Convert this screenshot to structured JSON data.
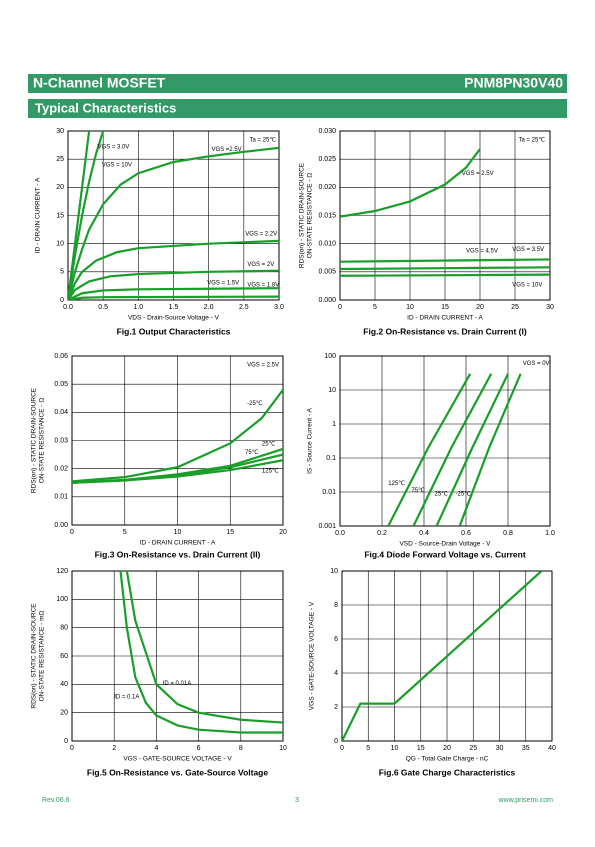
{
  "header": {
    "title": "N-Channel MOSFET",
    "part_number": "PNM8PN30V40"
  },
  "section": {
    "title": "Typical Characteristics"
  },
  "footer": {
    "revision": "Rev.06.6",
    "page": "3",
    "url": "www.prisemi.com"
  },
  "chart_data": [
    {
      "type": "line",
      "title": "Fig.1 Output Characteristics",
      "color": "#1a9e2a",
      "xlabel": "VDS - Drain-Source Voltage - V",
      "ylabel": [
        "ID - DRAIN CURRENT - A"
      ],
      "annotations": [
        "Ta = 25℃"
      ],
      "xlim": [
        0,
        3
      ],
      "ylim": [
        0,
        30
      ],
      "xticks": [
        {
          "value": 0,
          "label": "0.0"
        },
        0.5,
        {
          "value": 1,
          "label": "1.0"
        },
        1.5,
        {
          "value": 2,
          "label": "2.0"
        },
        2.5,
        {
          "value": 3,
          "label": "3.0"
        }
      ],
      "yticks": [
        0,
        5,
        10,
        15,
        20,
        25,
        30
      ],
      "grid": true,
      "series": [
        {
          "name": "VGS = 10V",
          "x": [
            0,
            0.1,
            0.2,
            0.3
          ],
          "values": [
            0,
            10,
            20,
            30
          ]
        },
        {
          "name": "VGS = 3.0V",
          "x": [
            0,
            0.1,
            0.2,
            0.3,
            0.4,
            0.5
          ],
          "values": [
            0,
            8,
            15,
            21,
            26,
            30
          ]
        },
        {
          "name": "VGS =2.5V",
          "x": [
            0,
            0.1,
            0.2,
            0.3,
            0.5,
            0.75,
            1,
            1.5,
            2,
            2.5,
            3
          ],
          "values": [
            0,
            5,
            9,
            12.5,
            17,
            20.5,
            22.5,
            24.5,
            25.5,
            26.3,
            27
          ]
        },
        {
          "name": "VGS = 2.2V",
          "x": [
            0,
            0.1,
            0.2,
            0.4,
            0.7,
            1,
            2,
            3
          ],
          "values": [
            0,
            3,
            5,
            7,
            8.5,
            9.2,
            10,
            10.5
          ]
        },
        {
          "name": "VGS = 2V",
          "x": [
            0,
            0.1,
            0.3,
            0.6,
            1,
            2,
            3
          ],
          "values": [
            0,
            1.8,
            3.3,
            4.2,
            4.6,
            5,
            5.2
          ]
        },
        {
          "name": "VGS = 1.8V",
          "x": [
            0,
            0.2,
            0.5,
            1,
            2,
            3
          ],
          "values": [
            0,
            1.2,
            1.7,
            1.9,
            2,
            2.1
          ]
        },
        {
          "name": "VGS = 1.5V",
          "x": [
            0,
            0.2,
            0.5,
            3
          ],
          "values": [
            0,
            0.4,
            0.5,
            0.6
          ]
        }
      ]
    },
    {
      "type": "line",
      "title": "Fig.2 On-Resistance vs. Drain Current (I)",
      "color": "#1a9e2a",
      "xlabel": "ID - DRAIN CURRENT - A",
      "ylabel": [
        "RDS(on) - STATIC DRAIN-SOURCE",
        "ON-STATE RESISTANCE - Ω"
      ],
      "annotations": [
        "Ta = 25℃"
      ],
      "xlim": [
        0,
        30
      ],
      "ylim": [
        0,
        0.03
      ],
      "xticks": [
        0,
        5,
        10,
        15,
        20,
        25,
        30
      ],
      "yticks": [
        {
          "value": 0,
          "label": "0.000"
        },
        {
          "value": 0.005,
          "label": "0.005"
        },
        {
          "value": 0.01,
          "label": "0.010"
        },
        {
          "value": 0.015,
          "label": "0.015"
        },
        {
          "value": 0.02,
          "label": "0.020"
        },
        {
          "value": 0.025,
          "label": "0.025"
        },
        {
          "value": 0.03,
          "label": "0.030"
        }
      ],
      "grid": true,
      "series": [
        {
          "name": "VGS = 2.5V",
          "x": [
            0,
            5,
            10,
            15,
            18,
            20
          ],
          "values": [
            0.0148,
            0.0158,
            0.0175,
            0.0205,
            0.0235,
            0.0268
          ]
        },
        {
          "name": "VGS = 4.5V",
          "x": [
            0,
            30
          ],
          "values": [
            0.0055,
            0.0058
          ]
        },
        {
          "name": "VGS = 3.5V",
          "x": [
            0,
            30
          ],
          "values": [
            0.0068,
            0.0072
          ]
        },
        {
          "name": "VGS = 10V",
          "x": [
            0,
            30
          ],
          "values": [
            0.0043,
            0.0045
          ]
        }
      ]
    },
    {
      "type": "line",
      "title": "Fig.3 On-Resistance vs. Drain Current (II)",
      "color": "#1a9e2a",
      "xlabel": "ID - DRAIN CURRENT - A",
      "ylabel": [
        "RDS(on) - STATIC DRAIN-SOURCE",
        "ON-STATE RESISTANCE - Ω"
      ],
      "annotations": [
        "VGS = 2.5V"
      ],
      "xlim": [
        0,
        20
      ],
      "ylim": [
        0,
        0.06
      ],
      "xticks": [
        0,
        5,
        10,
        15,
        20
      ],
      "yticks": [
        {
          "value": 0,
          "label": "0.00"
        },
        {
          "value": 0.01,
          "label": "0.01"
        },
        {
          "value": 0.02,
          "label": "0.02"
        },
        {
          "value": 0.03,
          "label": "0.03"
        },
        {
          "value": 0.04,
          "label": "0.04"
        },
        {
          "value": 0.05,
          "label": "0.05"
        },
        {
          "value": 0.06,
          "label": "0.06"
        }
      ],
      "grid": true,
      "series": [
        {
          "name": "-25℃",
          "x": [
            0,
            5,
            10,
            15,
            18,
            20
          ],
          "values": [
            0.0155,
            0.017,
            0.0205,
            0.029,
            0.038,
            0.048
          ]
        },
        {
          "name": "25℃",
          "x": [
            0,
            5,
            10,
            15,
            20
          ],
          "values": [
            0.015,
            0.016,
            0.018,
            0.021,
            0.027
          ]
        },
        {
          "name": "75℃",
          "x": [
            0,
            5,
            10,
            15,
            20
          ],
          "values": [
            0.015,
            0.016,
            0.0175,
            0.0205,
            0.025
          ]
        },
        {
          "name": "125℃",
          "x": [
            0,
            5,
            10,
            15,
            20
          ],
          "values": [
            0.015,
            0.0158,
            0.0172,
            0.0195,
            0.023
          ]
        }
      ]
    },
    {
      "type": "line",
      "title": "Fig.4 Diode Forward Voltage vs. Current",
      "color": "#1a9e2a",
      "xlabel": "VSD - Source-Drain Voltage - V",
      "ylabel": [
        "IS - Source Current - A"
      ],
      "annotations": [
        "VGS = 0V"
      ],
      "ylog": true,
      "xlim": [
        0,
        1
      ],
      "ylim": [
        0.001,
        100
      ],
      "xticks": [
        {
          "value": 0,
          "label": "0.0"
        },
        0.2,
        0.4,
        0.6,
        0.8,
        {
          "value": 1,
          "label": "1.0"
        }
      ],
      "yticks": [
        0.001,
        0.01,
        0.1,
        1,
        10,
        100
      ],
      "grid": true,
      "series": [
        {
          "name": "125℃",
          "x": [
            0.23,
            0.42,
            0.62
          ],
          "values": [
            0.001,
            0.2,
            30
          ]
        },
        {
          "name": "75℃",
          "x": [
            0.35,
            0.53,
            0.72
          ],
          "values": [
            0.001,
            0.2,
            30
          ]
        },
        {
          "name": "25℃",
          "x": [
            0.46,
            0.63,
            0.8
          ],
          "values": [
            0.001,
            0.2,
            30
          ]
        },
        {
          "name": "-25℃",
          "x": [
            0.57,
            0.71,
            0.86
          ],
          "values": [
            0.001,
            0.2,
            30
          ]
        }
      ]
    },
    {
      "type": "line",
      "title": "Fig.5 On-Resistance vs. Gate-Source Voltage",
      "color": "#1a9e2a",
      "xlabel": "VGS - GATE-SOURCE VOLTAGE - V",
      "ylabel": [
        "RDS(on) - STATIC DRAIN-SOURCE",
        "ON-STATE RESISTANCE - mΩ"
      ],
      "xlim": [
        0,
        10
      ],
      "ylim": [
        0,
        120
      ],
      "xticks": [
        0,
        2,
        4,
        6,
        8,
        10
      ],
      "yticks": [
        0,
        20,
        40,
        60,
        80,
        100,
        120
      ],
      "grid": true,
      "series": [
        {
          "name": "ID = 0.01A",
          "x": [
            2.6,
            3,
            4,
            5,
            6,
            8,
            10
          ],
          "values": [
            120,
            85,
            40,
            26,
            20,
            15,
            13
          ]
        },
        {
          "name": "ID = 0.1A",
          "x": [
            2.3,
            2.6,
            3,
            3.5,
            4,
            5,
            6,
            8,
            10
          ],
          "values": [
            120,
            80,
            45,
            27,
            18,
            11,
            8,
            6,
            6
          ]
        }
      ]
    },
    {
      "type": "line",
      "title": "Fig.6 Gate Charge Characteristics",
      "color": "#1a9e2a",
      "xlabel": "QG - Total Gate Charge - nC",
      "ylabel": [
        "VGS - GATE-SOURCE VOLTAGE - V"
      ],
      "xlim": [
        0,
        40
      ],
      "ylim": [
        0,
        10
      ],
      "xticks": [
        0,
        5,
        10,
        15,
        20,
        25,
        30,
        35,
        40
      ],
      "yticks": [
        0,
        2,
        4,
        6,
        8,
        10
      ],
      "grid": true,
      "series": [
        {
          "x": [
            0,
            3.5,
            10,
            38
          ],
          "values": [
            0,
            2.2,
            2.2,
            10
          ]
        }
      ]
    }
  ]
}
